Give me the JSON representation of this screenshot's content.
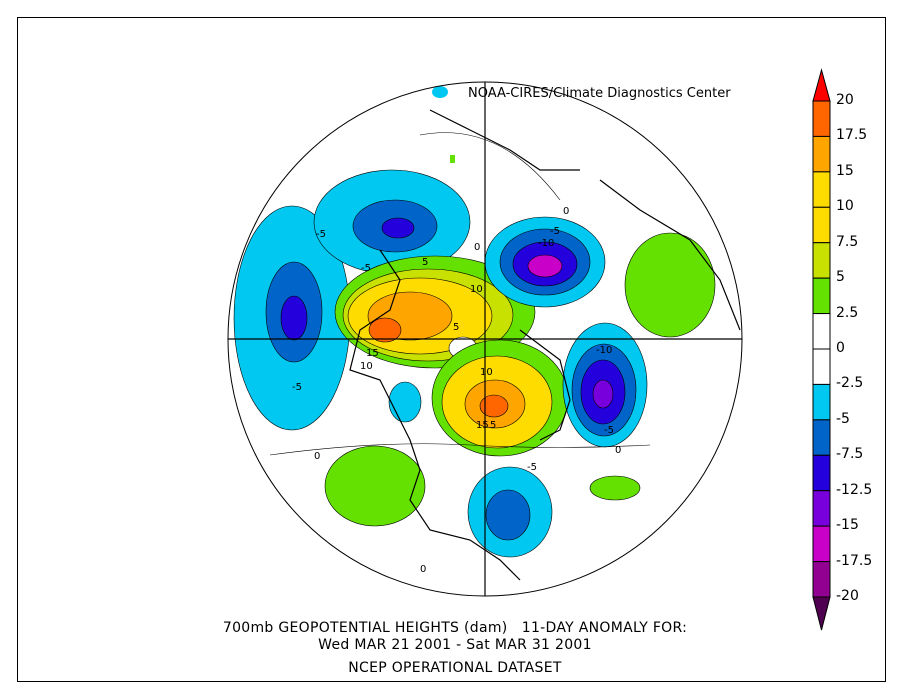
{
  "credit": "NOAA-CIRES/Climate Diagnostics Center",
  "title_line1": "700mb GEOPOTENTIAL HEIGHTS (dam)   11-DAY ANOMALY FOR:",
  "title_line2": "Wed MAR 21 2001 - Sat MAR 31 2001",
  "title_line3": "NCEP OPERATIONAL DATASET",
  "colorbar": {
    "labels": [
      "20",
      "17.5",
      "15",
      "10",
      "7.5",
      "5",
      "2.5",
      "0",
      "-2.5",
      "-5",
      "-7.5",
      "-12.5",
      "-15",
      "-17.5",
      "-20"
    ],
    "colors": [
      "#ff6600",
      "#ffa500",
      "#ffdc00",
      "#ffdc00",
      "#c8e100",
      "#64e100",
      "#ffffff",
      "#ffffff",
      "#00c8f0",
      "#0064c8",
      "#2300dc",
      "#7800dc",
      "#c800c8",
      "#910091"
    ],
    "top_tip": "#ff0000",
    "bottom_tip": "#500050"
  },
  "contour_labels": [
    "-5",
    "-5",
    "5",
    "10",
    "5",
    "15",
    "10",
    "-10",
    "-5",
    "0",
    "0",
    "10",
    "15",
    "5",
    "-10",
    "-5",
    "0",
    "-5",
    "0",
    "0",
    "-5"
  ]
}
